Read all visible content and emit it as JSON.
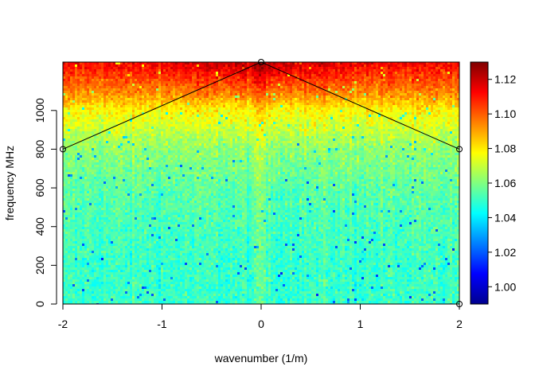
{
  "chart_data": {
    "type": "heatmap",
    "title": "",
    "xlabel": "wavenumber (1/m)",
    "ylabel": "frequency MHz",
    "xlim": [
      -2,
      2
    ],
    "ylim": [
      0,
      1250
    ],
    "x_ticks": [
      -2,
      -1,
      0,
      1,
      2
    ],
    "x_tick_labels": [
      "-2",
      "-1",
      "0",
      "1",
      "2"
    ],
    "y_ticks": [
      0,
      200,
      400,
      600,
      800,
      1000
    ],
    "y_tick_labels": [
      "0",
      "200",
      "400",
      "600",
      "800",
      "1000"
    ],
    "colorbar": {
      "min": 0.99,
      "max": 1.13,
      "ticks": [
        1.0,
        1.02,
        1.04,
        1.06,
        1.08,
        1.1,
        1.12
      ],
      "tick_labels": [
        "1.00",
        "1.02",
        "1.04",
        "1.06",
        "1.08",
        "1.10",
        "1.12"
      ],
      "colormap": [
        "#00008F",
        "#0000FF",
        "#0080FF",
        "#00FFFF",
        "#80FF80",
        "#FFFF00",
        "#FF8000",
        "#FF0000",
        "#800000"
      ]
    },
    "value_profile": {
      "frequency_mhz": [
        0,
        200,
        400,
        600,
        800,
        900,
        1000,
        1050,
        1100,
        1150,
        1200,
        1250
      ],
      "mean_value": [
        1.05,
        1.05,
        1.052,
        1.055,
        1.062,
        1.07,
        1.078,
        1.086,
        1.094,
        1.1,
        1.106,
        1.112
      ]
    },
    "overlay_line": {
      "x": [
        -2,
        0,
        2
      ],
      "y": [
        800,
        1250,
        800
      ]
    },
    "markers": {
      "x": [
        -2,
        0,
        2,
        2
      ],
      "y": [
        800,
        1250,
        800,
        0
      ]
    }
  }
}
